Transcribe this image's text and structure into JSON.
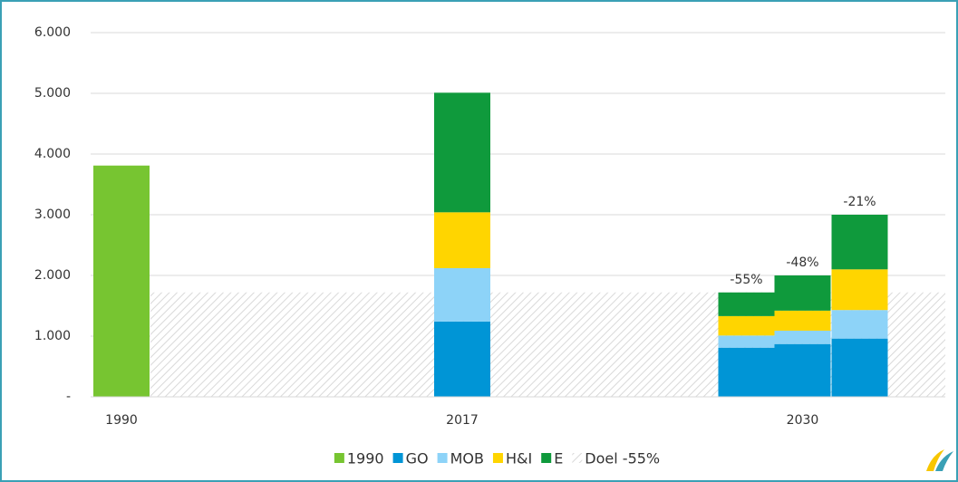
{
  "chart_data": {
    "type": "stacked_bar",
    "categories": [
      "1990",
      "2017",
      null,
      "2030",
      null
    ],
    "series": [
      {
        "name": "1990",
        "color": "#77c531",
        "values": [
          3810,
          null,
          null,
          null,
          null
        ]
      },
      {
        "name": "GO",
        "color": "#0095d6",
        "values": [
          null,
          1240,
          810,
          870,
          960
        ]
      },
      {
        "name": "MOB",
        "color": "#8dd3f8",
        "values": [
          null,
          880,
          200,
          220,
          470
        ]
      },
      {
        "name": "H&I",
        "color": "#ffd500",
        "values": [
          null,
          920,
          320,
          330,
          670
        ]
      },
      {
        "name": "E",
        "color": "#0f9a3c",
        "values": [
          null,
          1970,
          390,
          580,
          900
        ]
      }
    ],
    "target": {
      "name": "Doel -55%",
      "value": 1720
    },
    "bar_labels": [
      null,
      null,
      "-55%",
      "-48%",
      "-21%"
    ],
    "ylim": [
      0,
      6000
    ],
    "yticks": [
      {
        "value": 0,
        "label": "-"
      },
      {
        "value": 1000,
        "label": "1.000"
      },
      {
        "value": 2000,
        "label": "2.000"
      },
      {
        "value": 3000,
        "label": "3.000"
      },
      {
        "value": 4000,
        "label": "4.000"
      },
      {
        "value": 5000,
        "label": "5.000"
      },
      {
        "value": 6000,
        "label": "6.000"
      }
    ],
    "grid": true,
    "legend": "bottom"
  }
}
